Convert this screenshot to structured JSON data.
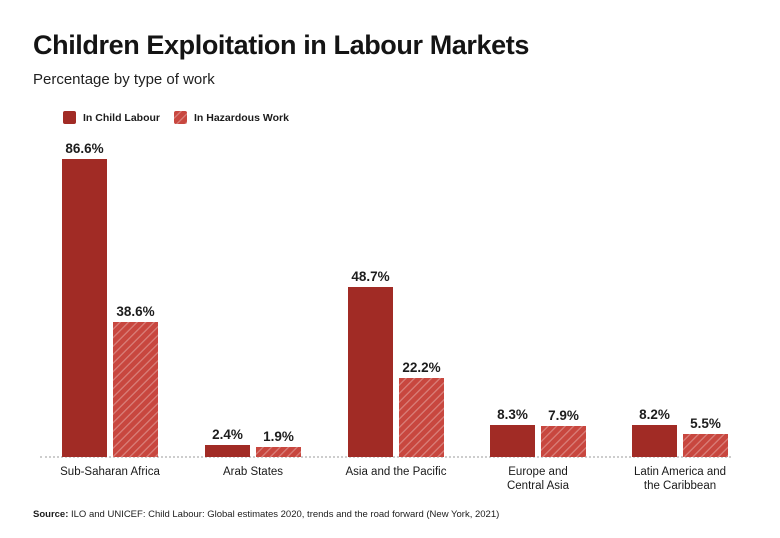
{
  "header": {
    "title": "Children Exploitation in Labour Markets",
    "subtitle": "Percentage by type of work"
  },
  "legend": [
    {
      "label": "In Child Labour",
      "style": "solid",
      "swatch_icon": "solid-red-square-icon"
    },
    {
      "label": "In Hazardous Work",
      "style": "hatched",
      "swatch_icon": "hatched-red-square-icon"
    }
  ],
  "colors": {
    "solid_bar": "#A12B25",
    "hatch_base": "#C8473F",
    "hatch_stripe": "rgba(255,255,255,0.28)",
    "text_dark": "#1a1a1a",
    "baseline": "#cdcdcd"
  },
  "chart_data": {
    "type": "bar",
    "title": "Children Exploitation in Labour Markets",
    "subtitle": "Percentage by type of work",
    "xlabel": "",
    "ylabel": "",
    "unit": "percent",
    "value_suffix": "%",
    "ylim": [
      0,
      100
    ],
    "grid": false,
    "data_labels": true,
    "legend_position": "top-left",
    "categories": [
      "Sub-Saharan Africa",
      "Arab States",
      "Asia and the Pacific",
      "Europe and\nCentral Asia",
      "Latin America and\nthe Caribbean"
    ],
    "series": [
      {
        "name": "In Child Labour",
        "style": "solid",
        "values": [
          86.6,
          2.4,
          48.7,
          8.3,
          8.2
        ]
      },
      {
        "name": "In Hazardous Work",
        "style": "hatched",
        "values": [
          38.6,
          1.9,
          22.2,
          7.9,
          5.5
        ]
      }
    ]
  },
  "source": {
    "prefix": "Source:",
    "text": " ILO and UNICEF: Child Labour: Global estimates 2020, trends and the road forward (New York, 2021)"
  }
}
